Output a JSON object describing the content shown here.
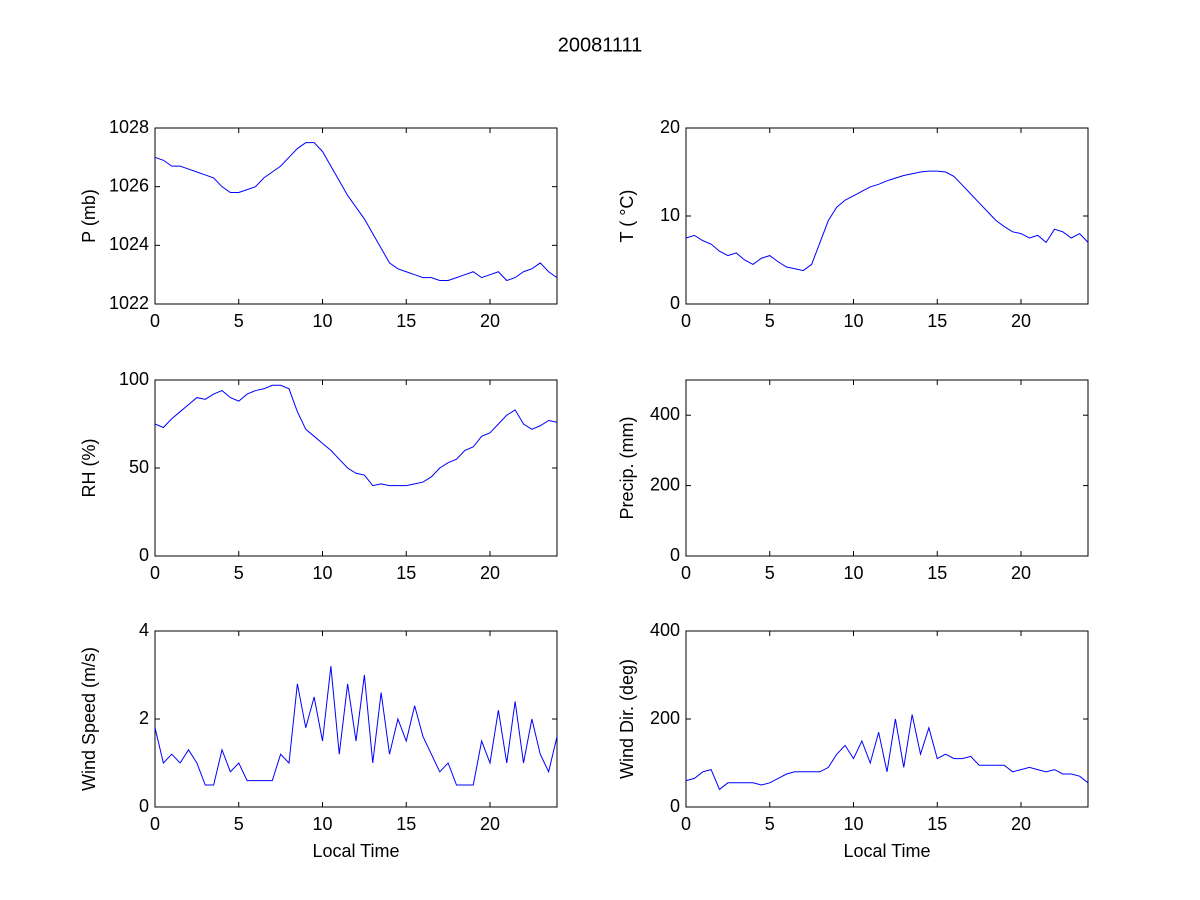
{
  "title": "20081111",
  "chart_data": [
    {
      "type": "line",
      "ylabel": "P (mb)",
      "x": [
        0,
        0.5,
        1,
        1.5,
        2,
        2.5,
        3,
        3.5,
        4,
        4.5,
        5,
        5.5,
        6,
        6.5,
        7,
        7.5,
        8,
        8.5,
        9,
        9.5,
        10,
        10.5,
        11,
        11.5,
        12,
        12.5,
        13,
        13.5,
        14,
        14.5,
        15,
        15.5,
        16,
        16.5,
        17,
        17.5,
        18,
        18.5,
        19,
        19.5,
        20,
        20.5,
        21,
        21.5,
        22,
        22.5,
        23,
        23.5,
        24
      ],
      "series": [
        {
          "color": "#0000ff",
          "values": [
            1027,
            1026.9,
            1026.7,
            1026.7,
            1026.6,
            1026.5,
            1026.4,
            1026.3,
            1026.0,
            1025.8,
            1025.8,
            1025.9,
            1026.0,
            1026.3,
            1026.5,
            1026.7,
            1027.0,
            1027.3,
            1027.5,
            1027.5,
            1027.2,
            1026.7,
            1026.2,
            1025.7,
            1025.3,
            1024.9,
            1024.4,
            1023.9,
            1023.4,
            1023.2,
            1023.1,
            1023.0,
            1022.9,
            1022.9,
            1022.8,
            1022.8,
            1022.9,
            1023.0,
            1023.1,
            1022.9,
            1023.0,
            1023.1,
            1022.8,
            1022.9,
            1023.1,
            1023.2,
            1023.4,
            1023.1,
            1022.9
          ]
        }
      ],
      "xlim": [
        0,
        24
      ],
      "xticks": [
        0,
        5,
        10,
        15,
        20
      ],
      "ylim": [
        1022,
        1028
      ],
      "yticks": [
        1022,
        1024,
        1026,
        1028
      ]
    },
    {
      "type": "line",
      "ylabel": "T ( °C)",
      "x": [
        0,
        0.5,
        1,
        1.5,
        2,
        2.5,
        3,
        3.5,
        4,
        4.5,
        5,
        5.5,
        6,
        6.5,
        7,
        7.5,
        8,
        8.5,
        9,
        9.5,
        10,
        10.5,
        11,
        11.5,
        12,
        12.5,
        13,
        13.5,
        14,
        14.5,
        15,
        15.5,
        16,
        16.5,
        17,
        17.5,
        18,
        18.5,
        19,
        19.5,
        20,
        20.5,
        21,
        21.5,
        22,
        22.5,
        23,
        23.5,
        24
      ],
      "series": [
        {
          "color": "#0000ff",
          "values": [
            7.5,
            7.8,
            7.2,
            6.8,
            6.0,
            5.5,
            5.8,
            5.0,
            4.5,
            5.2,
            5.5,
            4.8,
            4.2,
            4.0,
            3.8,
            4.5,
            7.0,
            9.5,
            11.0,
            11.8,
            12.3,
            12.8,
            13.3,
            13.6,
            14.0,
            14.3,
            14.6,
            14.8,
            15.0,
            15.1,
            15.1,
            15.0,
            14.5,
            13.5,
            12.5,
            11.5,
            10.5,
            9.5,
            8.8,
            8.2,
            8.0,
            7.5,
            7.8,
            7.0,
            8.5,
            8.2,
            7.5,
            8.0,
            7.0
          ]
        }
      ],
      "xlim": [
        0,
        24
      ],
      "xticks": [
        0,
        5,
        10,
        15,
        20
      ],
      "ylim": [
        0,
        20
      ],
      "yticks": [
        0,
        10,
        20
      ]
    },
    {
      "type": "line",
      "ylabel": "RH (%)",
      "x": [
        0,
        0.5,
        1,
        1.5,
        2,
        2.5,
        3,
        3.5,
        4,
        4.5,
        5,
        5.5,
        6,
        6.5,
        7,
        7.5,
        8,
        8.5,
        9,
        9.5,
        10,
        10.5,
        11,
        11.5,
        12,
        12.5,
        13,
        13.5,
        14,
        14.5,
        15,
        15.5,
        16,
        16.5,
        17,
        17.5,
        18,
        18.5,
        19,
        19.5,
        20,
        20.5,
        21,
        21.5,
        22,
        22.5,
        23,
        23.5,
        24
      ],
      "series": [
        {
          "color": "#0000ff",
          "values": [
            75,
            73,
            78,
            82,
            86,
            90,
            89,
            92,
            94,
            90,
            88,
            92,
            94,
            95,
            97,
            97,
            95,
            82,
            72,
            68,
            64,
            60,
            55,
            50,
            47,
            46,
            40,
            41,
            40,
            40,
            40,
            41,
            42,
            45,
            50,
            53,
            55,
            60,
            62,
            68,
            70,
            75,
            80,
            83,
            75,
            72,
            74,
            77,
            76
          ]
        }
      ],
      "xlim": [
        0,
        24
      ],
      "xticks": [
        0,
        5,
        10,
        15,
        20
      ],
      "ylim": [
        0,
        100
      ],
      "yticks": [
        0,
        50,
        100
      ]
    },
    {
      "type": "line",
      "ylabel": "Precip. (mm)",
      "xlim": [
        0,
        24
      ],
      "xticks": [
        0,
        5,
        10,
        15,
        20
      ],
      "ylim": [
        0,
        500
      ],
      "yticks": [
        0,
        200,
        400
      ]
    },
    {
      "type": "line",
      "ylabel": "Wind Speed (m/s)",
      "xlabel": "Local Time",
      "x": [
        0,
        0.5,
        1,
        1.5,
        2,
        2.5,
        3,
        3.5,
        4,
        4.5,
        5,
        5.5,
        6,
        6.5,
        7,
        7.5,
        8,
        8.5,
        9,
        9.5,
        10,
        10.5,
        11,
        11.5,
        12,
        12.5,
        13,
        13.5,
        14,
        14.5,
        15,
        15.5,
        16,
        16.5,
        17,
        17.5,
        18,
        18.5,
        19,
        19.5,
        20,
        20.5,
        21,
        21.5,
        22,
        22.5,
        23,
        23.5,
        24
      ],
      "series": [
        {
          "color": "#0000ff",
          "values": [
            1.8,
            1.0,
            1.2,
            1.0,
            1.3,
            1.0,
            0.5,
            0.5,
            1.3,
            0.8,
            1.0,
            0.6,
            0.6,
            0.6,
            0.6,
            1.2,
            1.0,
            2.8,
            1.8,
            2.5,
            1.5,
            3.2,
            1.2,
            2.8,
            1.5,
            3.0,
            1.0,
            2.6,
            1.2,
            2.0,
            1.5,
            2.3,
            1.6,
            1.2,
            0.8,
            1.0,
            0.5,
            0.5,
            0.5,
            1.5,
            1.0,
            2.2,
            1.0,
            2.4,
            1.0,
            2.0,
            1.2,
            0.8,
            1.6
          ]
        }
      ],
      "xlim": [
        0,
        24
      ],
      "xticks": [
        0,
        5,
        10,
        15,
        20
      ],
      "ylim": [
        0,
        4
      ],
      "yticks": [
        0,
        2,
        4
      ]
    },
    {
      "type": "line",
      "ylabel": "Wind Dir. (deg)",
      "xlabel": "Local Time",
      "x": [
        0,
        0.5,
        1,
        1.5,
        2,
        2.5,
        3,
        3.5,
        4,
        4.5,
        5,
        5.5,
        6,
        6.5,
        7,
        7.5,
        8,
        8.5,
        9,
        9.5,
        10,
        10.5,
        11,
        11.5,
        12,
        12.5,
        13,
        13.5,
        14,
        14.5,
        15,
        15.5,
        16,
        16.5,
        17,
        17.5,
        18,
        18.5,
        19,
        19.5,
        20,
        20.5,
        21,
        21.5,
        22,
        22.5,
        23,
        23.5,
        24
      ],
      "series": [
        {
          "color": "#0000ff",
          "values": [
            60,
            65,
            80,
            85,
            40,
            55,
            55,
            55,
            55,
            50,
            55,
            65,
            75,
            80,
            80,
            80,
            80,
            90,
            120,
            140,
            110,
            150,
            100,
            170,
            80,
            200,
            90,
            210,
            120,
            180,
            110,
            120,
            110,
            110,
            115,
            95,
            95,
            95,
            95,
            80,
            85,
            90,
            85,
            80,
            85,
            75,
            75,
            70,
            55
          ]
        }
      ],
      "xlim": [
        0,
        24
      ],
      "xticks": [
        0,
        5,
        10,
        15,
        20
      ],
      "ylim": [
        0,
        400
      ],
      "yticks": [
        0,
        200,
        400
      ]
    }
  ]
}
